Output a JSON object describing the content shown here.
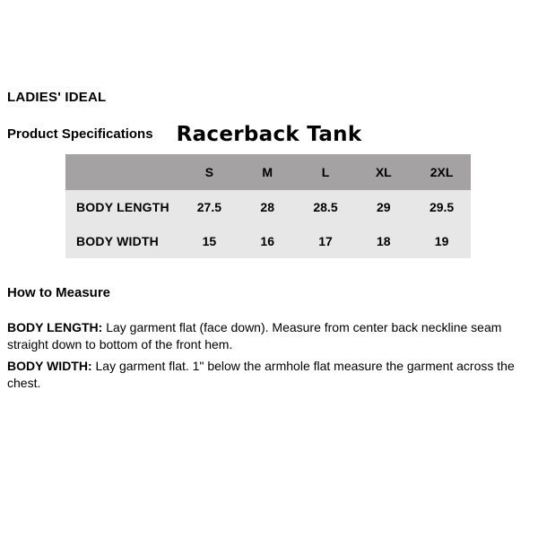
{
  "colors": {
    "table_header_bg": "#a5a2a3",
    "table_body_bg": "#e8e7e7",
    "text": "#000000",
    "page_bg": "#ffffff"
  },
  "header": {
    "brand": "LADIES' IDEAL",
    "section_label": "Product Specifications",
    "product_title": "Racerback Tank"
  },
  "spec_table": {
    "columns": [
      "S",
      "M",
      "L",
      "XL",
      "2XL"
    ],
    "rows": [
      {
        "label": "BODY LENGTH",
        "values": [
          "27.5",
          "28",
          "28.5",
          "29",
          "29.5"
        ]
      },
      {
        "label": "BODY WIDTH",
        "values": [
          "15",
          "16",
          "17",
          "18",
          "19"
        ]
      }
    ]
  },
  "how_to_measure": {
    "heading": "How to Measure",
    "instructions": [
      {
        "term": "BODY LENGTH:",
        "text": " Lay garment flat (face down). Measure from center back neckline seam straight down to bottom of the front hem."
      },
      {
        "term": "BODY WIDTH:",
        "text": " Lay garment flat. 1\" below the armhole flat measure the garment across the chest."
      }
    ]
  }
}
